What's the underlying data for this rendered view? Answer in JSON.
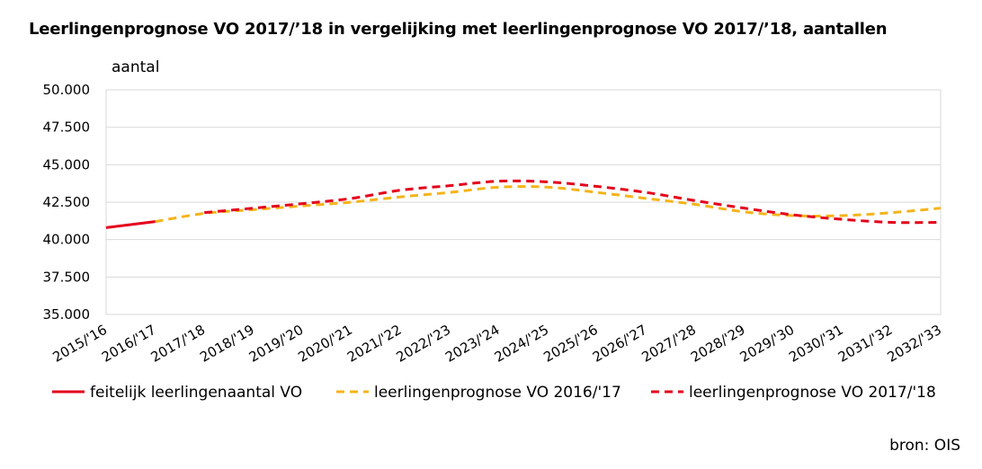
{
  "chart_data": {
    "type": "line",
    "title": "Leerlingenprognose VO 2017/’18 in vergelijking met leerlingenprognose VO 2017/’18, aantallen",
    "ylabel": "aantal",
    "xlabel": "",
    "categories": [
      "2015/'16",
      "2016/'17",
      "2017/'18",
      "2018/'19",
      "2019/'20",
      "2020/'21",
      "2021/'22",
      "2022/'23",
      "2023/'24",
      "2024/'25",
      "2025/'26",
      "2026/'27",
      "2027/'28",
      "2028/'29",
      "2029/'30",
      "2030/'31",
      "2031/'32",
      "2032/'33"
    ],
    "ylim": [
      35000,
      50000
    ],
    "yticks": [
      "35.000",
      "37.500",
      "40.000",
      "42.500",
      "45.000",
      "47.500",
      "50.000"
    ],
    "ytick_values": [
      35000,
      37500,
      40000,
      42500,
      45000,
      47500,
      50000
    ],
    "grid": true,
    "legend_position": "bottom",
    "series": [
      {
        "name": "feitelijk leerlingenaantal VO",
        "color": "#e3001b",
        "style": "solid",
        "values": [
          40800,
          41200,
          null,
          null,
          null,
          null,
          null,
          null,
          null,
          null,
          null,
          null,
          null,
          null,
          null,
          null,
          null,
          null
        ]
      },
      {
        "name": "leerlingenprognose VO 2016/'17",
        "color": "#f4b41a",
        "style": "dashed",
        "values": [
          null,
          41200,
          41750,
          42000,
          42250,
          42500,
          42850,
          43150,
          43500,
          43500,
          43150,
          42750,
          42350,
          41850,
          41600,
          41600,
          41800,
          42100
        ]
      },
      {
        "name": "leerlingenprognose VO 2017/'18",
        "color": "#e3001b",
        "style": "dashed",
        "values": [
          null,
          null,
          41800,
          42100,
          42400,
          42750,
          43300,
          43600,
          43900,
          43850,
          43550,
          43150,
          42600,
          42100,
          41650,
          41350,
          41150,
          41150
        ]
      }
    ]
  },
  "source_note": "bron: OIS"
}
